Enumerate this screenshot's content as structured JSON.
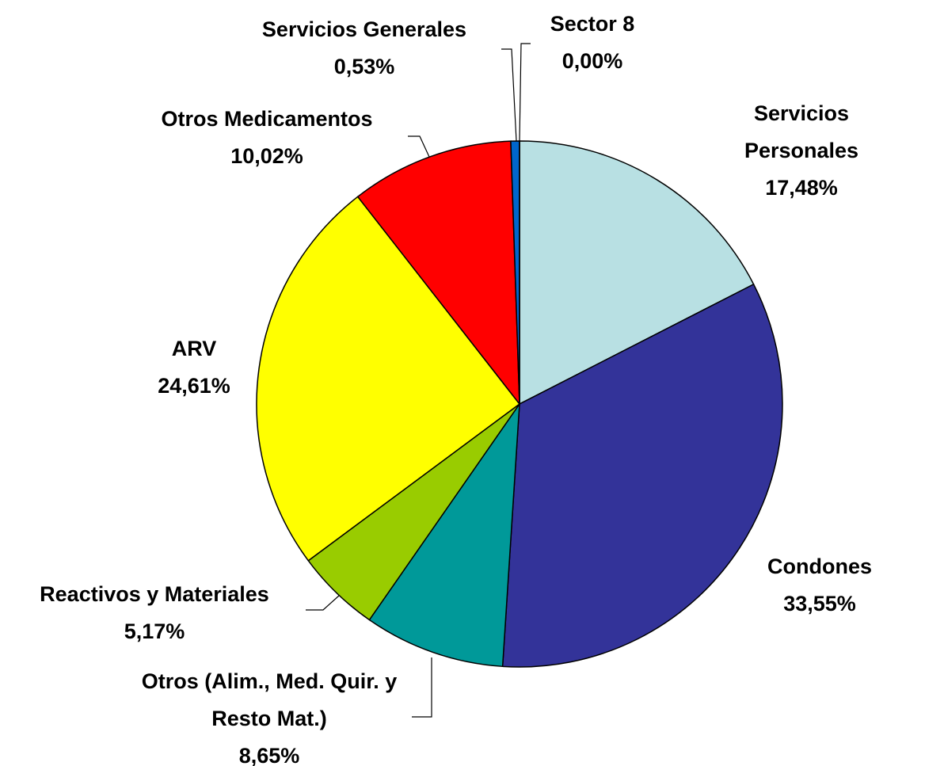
{
  "chart_data": {
    "type": "pie",
    "categories": [
      "Servicios Personales",
      "Condones",
      "Otros (Alim., Med. Quir. y Resto Mat.)",
      "Reactivos y Materiales",
      "ARV",
      "Otros Medicamentos",
      "Servicios Generales",
      "Sector 8"
    ],
    "values": [
      17.48,
      33.55,
      8.65,
      5.17,
      24.61,
      10.02,
      0.53,
      0.0
    ],
    "value_labels": [
      "17,48%",
      "33,55%",
      "8,65%",
      "5,17%",
      "24,61%",
      "10,02%",
      "0,53%",
      "0,00%"
    ],
    "colors": [
      "#b8e0e3",
      "#333399",
      "#009999",
      "#99cc00",
      "#ffff00",
      "#ff0000",
      "#0066cc",
      "#ff99cc"
    ]
  }
}
